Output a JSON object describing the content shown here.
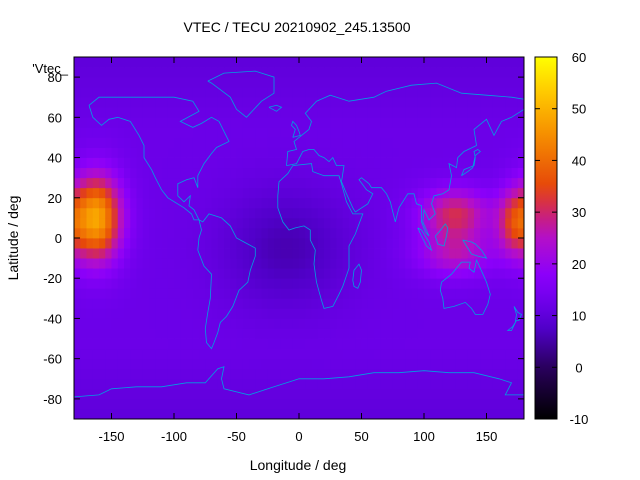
{
  "chart_data": {
    "type": "heatmap",
    "title": "VTEC / TECU 20210902_245.13500",
    "xlabel": "Longitude / deg",
    "ylabel": "Latitude / deg",
    "legend_key": "'Vtec_",
    "xlim": [
      -180,
      180
    ],
    "ylim": [
      -90,
      90
    ],
    "x_ticks": [
      -150,
      -100,
      -50,
      0,
      50,
      100,
      150
    ],
    "y_ticks": [
      -80,
      -60,
      -40,
      -20,
      0,
      20,
      40,
      60,
      80
    ],
    "colorbar": {
      "min": -10,
      "max": 60,
      "ticks": [
        -10,
        0,
        10,
        20,
        30,
        40,
        50,
        60
      ]
    },
    "background_value": 12,
    "enhancement_regions": [
      {
        "region": "central-pacific anomaly",
        "lon_center": -162,
        "lat_center": 10,
        "peak_value": 48
      },
      {
        "region": "asia-pacific crest north",
        "lon_center": 125,
        "lat_center": 12,
        "peak_value": 33
      },
      {
        "region": "asia-pacific crest south",
        "lon_center": 125,
        "lat_center": -8,
        "peak_value": 28
      },
      {
        "region": "east-pacific crest",
        "lon_center": 172,
        "lat_center": 8,
        "peak_value": 32
      }
    ],
    "low_region": {
      "region": "south atlantic / africa",
      "lon_center": -10,
      "lat_center": -5,
      "value": 6
    },
    "grid": false,
    "legend_position": "top-left",
    "colormap": "black-purple-red-orange-yellow",
    "colors": {
      "coastline": "#00a0e0",
      "background": "#ffffff",
      "frame": "#000000"
    }
  }
}
